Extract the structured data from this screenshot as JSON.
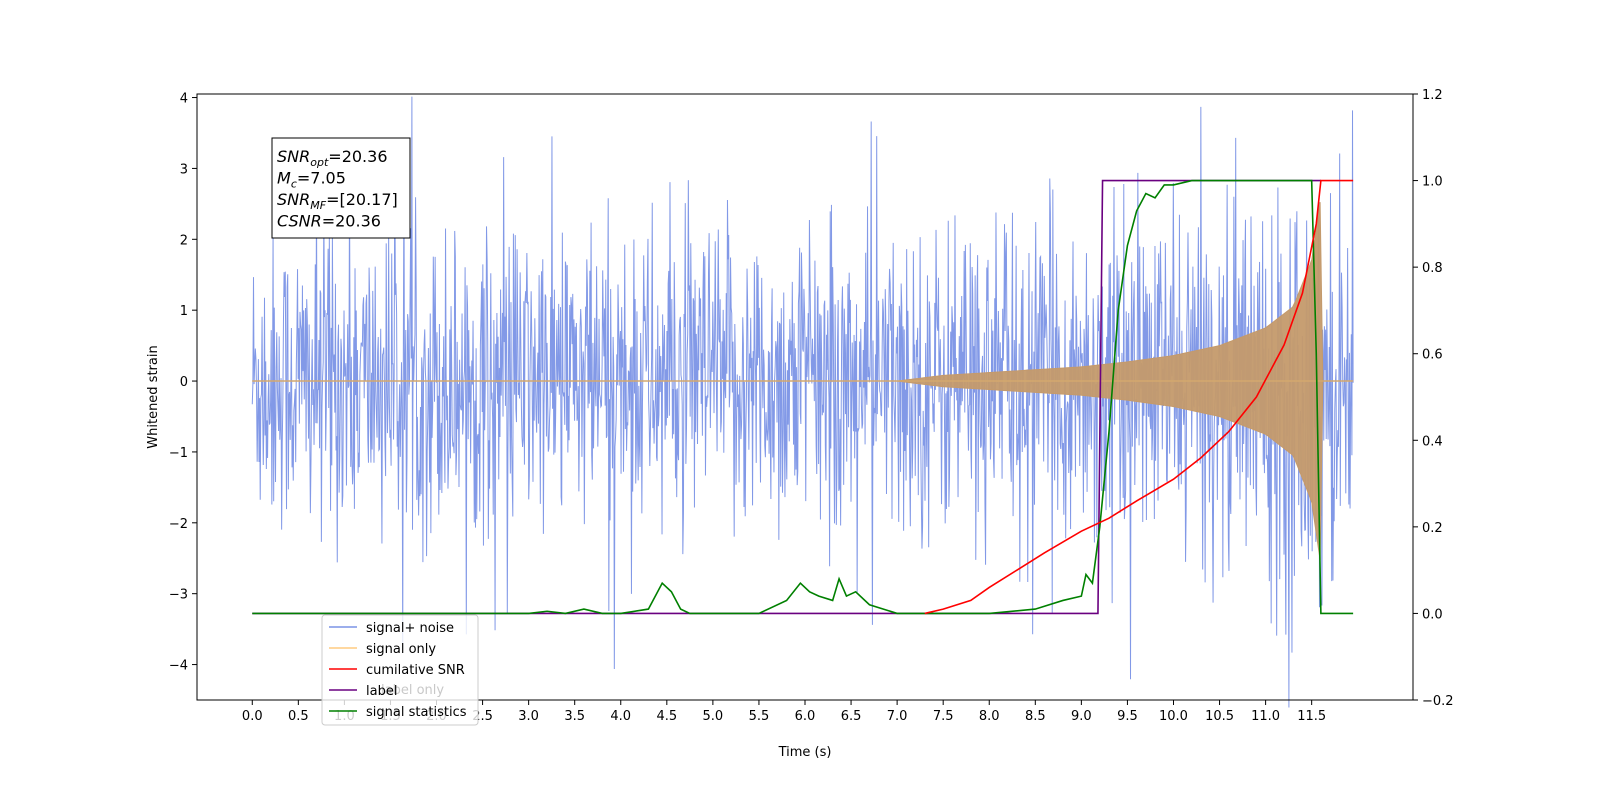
{
  "chart_data": {
    "type": "line",
    "xlabel": "Time (s)",
    "ylabel": "Whitened strain",
    "ylabel_right": "",
    "xlim": [
      -0.6,
      12.6
    ],
    "ylim": [
      -4.5,
      4.05
    ],
    "ylim_right": [
      -0.2,
      1.2
    ],
    "x_ticks": [
      "0.0",
      "0.5",
      "1.0",
      "1.5",
      "2.0",
      "2.5",
      "3.0",
      "3.5",
      "4.0",
      "4.5",
      "5.0",
      "5.5",
      "6.0",
      "6.5",
      "7.0",
      "7.5",
      "8.0",
      "8.5",
      "9.0",
      "9.5",
      "10.0",
      "10.5",
      "11.0",
      "11.5"
    ],
    "y_ticks_left": [
      "4",
      "3",
      "2",
      "1",
      "0",
      "-1",
      "-2",
      "-3",
      "-4"
    ],
    "y_ticks_right": [
      "1.2",
      "1.0",
      "0.8",
      "0.6",
      "0.4",
      "0.2",
      "0.0",
      "-0.2"
    ],
    "grid": false,
    "legend_position": "lower-left",
    "annotation": [
      {
        "base": "SNR",
        "sub": "opt",
        "rest": "=20.36"
      },
      {
        "base": "M",
        "sub": "c",
        "rest": "=7.05"
      },
      {
        "base": "SNR",
        "sub": "MF",
        "rest": "=[20.17]"
      },
      {
        "base": "CSNR",
        "sub": "",
        "rest": "=20.36"
      }
    ],
    "series": [
      {
        "name": "signal+ noise",
        "axis": "left",
        "color": "#7b93e6",
        "description": "whitened noise plus signal, amplitude envelope approximately",
        "t": [
          0.0,
          2.0,
          4.0,
          6.0,
          7.5,
          8.5,
          9.5,
          10.5,
          11.0,
          11.4,
          11.55,
          11.6,
          11.95
        ],
        "upper": [
          1.7,
          1.7,
          1.7,
          1.7,
          1.7,
          1.75,
          1.8,
          1.95,
          2.2,
          2.4,
          2.7,
          2.3,
          1.8
        ],
        "lower": [
          -1.7,
          -1.7,
          -1.7,
          -1.7,
          -1.7,
          -1.75,
          -1.8,
          -1.95,
          -2.2,
          -2.4,
          -2.7,
          -2.3,
          -1.8
        ]
      },
      {
        "name": "signal only",
        "axis": "left",
        "color": "#c49a6c",
        "description": "chirp envelope (amplitude)",
        "t": [
          0.0,
          7.0,
          7.5,
          8.0,
          8.5,
          9.0,
          9.5,
          10.0,
          10.5,
          11.0,
          11.3,
          11.5,
          11.6,
          11.62,
          11.95
        ],
        "amplitude": [
          0.0,
          0.0,
          0.08,
          0.12,
          0.16,
          0.2,
          0.27,
          0.36,
          0.5,
          0.75,
          1.05,
          1.7,
          2.6,
          0.0,
          0.0
        ]
      },
      {
        "name": "cumilative SNR",
        "axis": "right",
        "color": "#ff0000",
        "x": [
          7.3,
          7.5,
          7.8,
          8.0,
          8.3,
          8.6,
          9.0,
          9.3,
          9.6,
          10.0,
          10.3,
          10.6,
          10.9,
          11.2,
          11.4,
          11.55,
          11.6,
          11.95
        ],
        "y": [
          0.0,
          0.01,
          0.03,
          0.06,
          0.1,
          0.14,
          0.19,
          0.22,
          0.26,
          0.31,
          0.36,
          0.42,
          0.5,
          0.62,
          0.74,
          0.9,
          1.0,
          1.0
        ]
      },
      {
        "name": "label",
        "axis": "right",
        "color": "#6a0080",
        "x": [
          0.0,
          9.18,
          9.23,
          11.55,
          11.58,
          11.6
        ],
        "y": [
          0.0,
          0.0,
          1.0,
          1.0,
          1.0,
          1.0
        ]
      },
      {
        "name": "signal statistics",
        "axis": "right",
        "color": "#008000",
        "x": [
          0.0,
          3.0,
          3.2,
          3.4,
          3.6,
          3.8,
          4.0,
          4.3,
          4.45,
          4.55,
          4.65,
          4.75,
          5.0,
          5.5,
          5.8,
          5.95,
          6.05,
          6.15,
          6.3,
          6.37,
          6.45,
          6.55,
          6.7,
          7.0,
          7.5,
          8.0,
          8.5,
          8.8,
          9.0,
          9.05,
          9.12,
          9.2,
          9.3,
          9.4,
          9.5,
          9.6,
          9.7,
          9.8,
          9.9,
          10.0,
          10.2,
          10.5,
          11.0,
          11.5,
          11.55,
          11.6,
          11.65,
          11.95
        ],
        "y": [
          0.0,
          0.0,
          0.005,
          0.0,
          0.01,
          0.0,
          0.0,
          0.01,
          0.07,
          0.05,
          0.01,
          0.0,
          0.0,
          0.0,
          0.03,
          0.07,
          0.05,
          0.04,
          0.03,
          0.08,
          0.04,
          0.05,
          0.02,
          0.0,
          0.0,
          0.0,
          0.01,
          0.03,
          0.04,
          0.09,
          0.07,
          0.2,
          0.42,
          0.7,
          0.85,
          0.93,
          0.97,
          0.96,
          0.99,
          0.99,
          1.0,
          1.0,
          1.0,
          1.0,
          0.6,
          0.0,
          0.0,
          0.0
        ]
      },
      {
        "name": "label only",
        "axis": "left",
        "color": "#6a0080",
        "legend_only": true
      }
    ],
    "legend_entries": [
      {
        "label": "signal+ noise",
        "color": "#7b93e6"
      },
      {
        "label": "signal only",
        "color": "#ffcc80"
      },
      {
        "label": "cumilative SNR",
        "color": "#ff0000"
      },
      {
        "label": "label",
        "color": "#6a0080"
      },
      {
        "label": "signal statistics",
        "color": "#008000"
      }
    ],
    "legend_ghost": [
      "label only"
    ]
  }
}
